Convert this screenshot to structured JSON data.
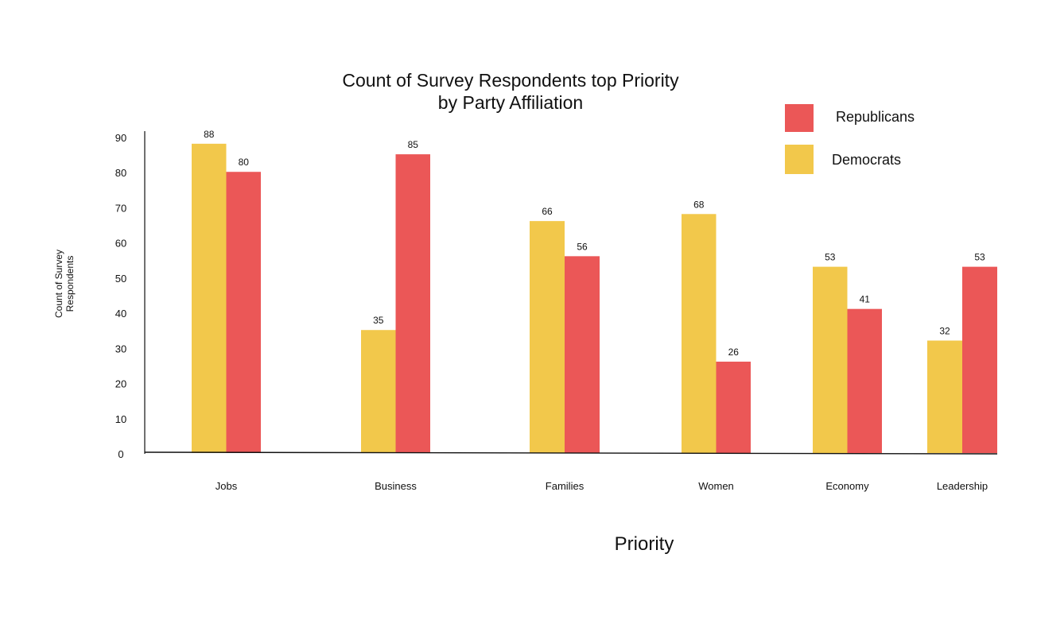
{
  "chart_data": {
    "type": "bar",
    "title_lines": [
      "Count of Survey Respondents top Priority",
      "by Party Affiliation"
    ],
    "xlabel": "Priority",
    "ylabel_lines": [
      "Count of Survey",
      "Respondents"
    ],
    "yticks": [
      0,
      10,
      20,
      30,
      40,
      50,
      60,
      70,
      80,
      90
    ],
    "ylim": [
      0,
      90
    ],
    "categories": [
      "Jobs",
      "Business",
      "Families",
      "Women",
      "Economy",
      "Leadership"
    ],
    "series": [
      {
        "name": "Democrats",
        "color": "#F2C84B",
        "values": [
          88,
          35,
          66,
          68,
          53,
          32
        ],
        "labels": [
          "88",
          "35",
          "66",
          "68",
          "53",
          "32"
        ]
      },
      {
        "name": "Republicans",
        "color": "#EB5757",
        "values": [
          80,
          85,
          56,
          26,
          41,
          53
        ],
        "labels": [
          "80",
          "85",
          "56",
          "26",
          "41",
          "53"
        ]
      }
    ],
    "legend": {
      "position": "top-right",
      "items": [
        {
          "label": "Republicans",
          "color": "#EB5757"
        },
        {
          "label": "Democrats",
          "color": "#F2C84B"
        }
      ]
    },
    "grid": false
  }
}
